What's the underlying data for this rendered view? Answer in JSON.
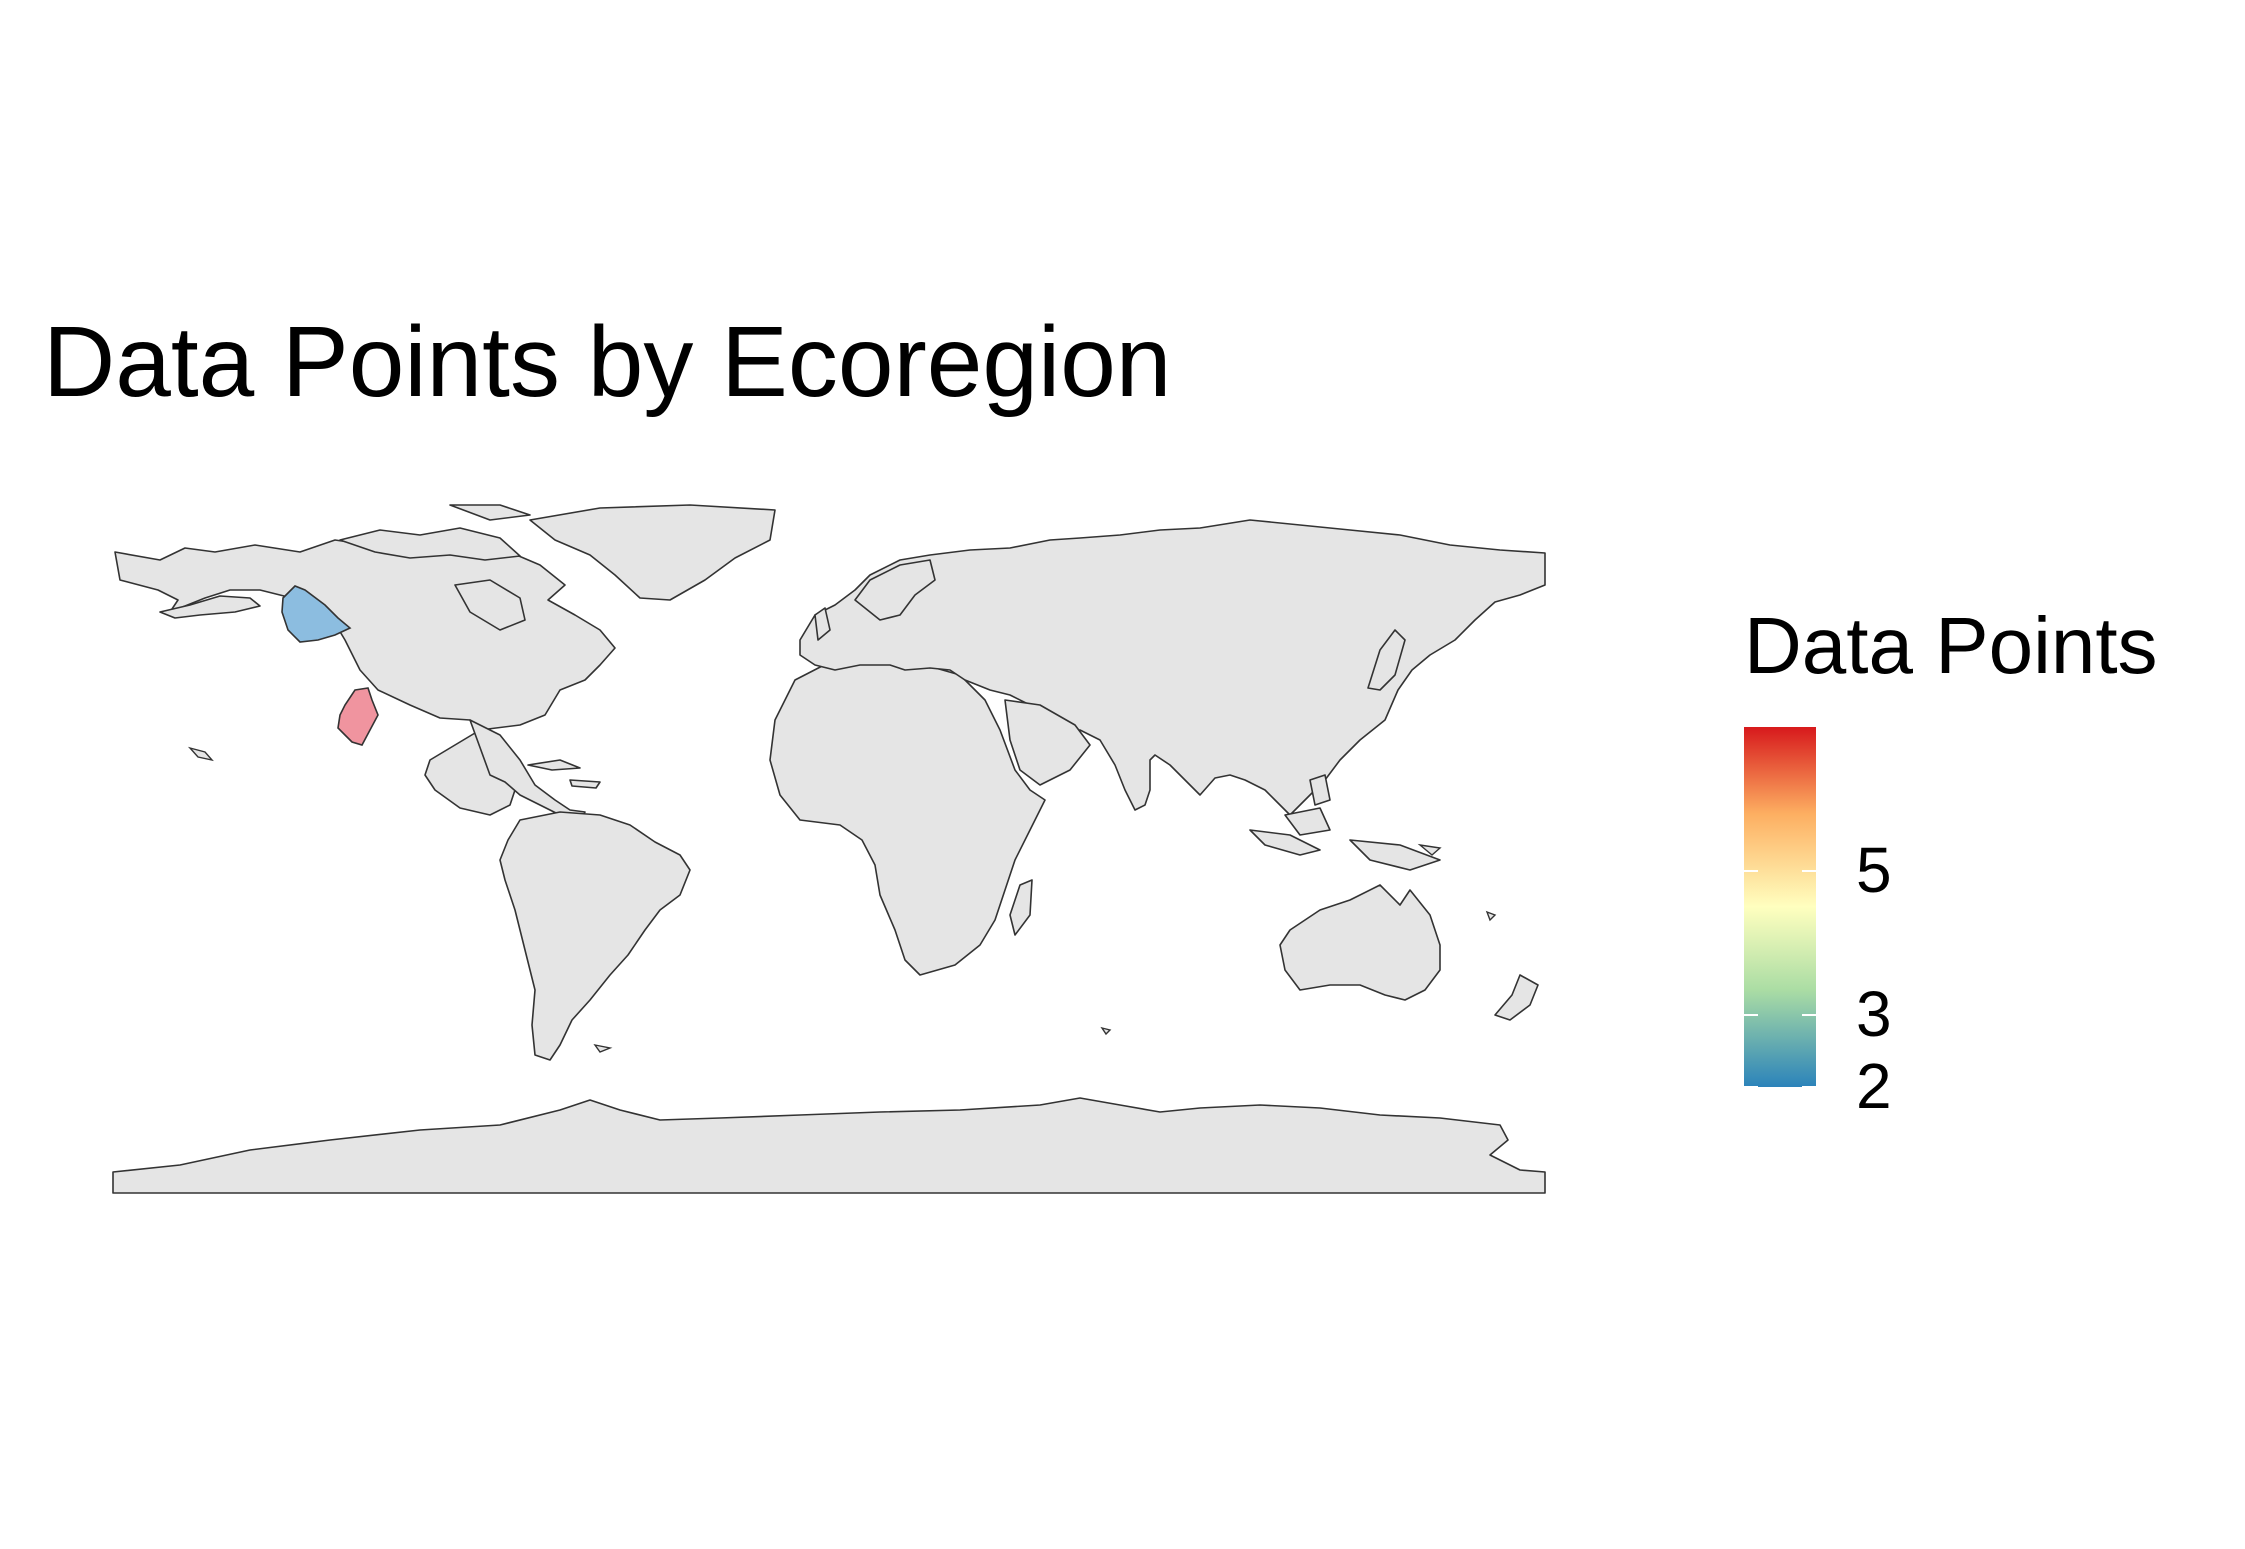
{
  "title": "Data Points by Ecoregion",
  "legend": {
    "title": "Data Points",
    "min": 2,
    "max": 7,
    "ticks": [
      {
        "label": "5",
        "value": 5
      },
      {
        "label": "3",
        "value": 3
      },
      {
        "label": "2",
        "value": 2
      }
    ],
    "palette": [
      "#2b83ba",
      "#abdda4",
      "#ffffbf",
      "#fdae61",
      "#d7191c"
    ]
  },
  "map": {
    "projection": "equirectangular",
    "land_color": "#e5e5e5",
    "border_color": "#333333",
    "highlighted_regions": [
      {
        "id": "pacific-northwest-ecoregion",
        "color": "#8cbde0",
        "value": 2
      },
      {
        "id": "baja-california-ecoregion",
        "color": "#f0949f",
        "value": 7
      }
    ]
  }
}
